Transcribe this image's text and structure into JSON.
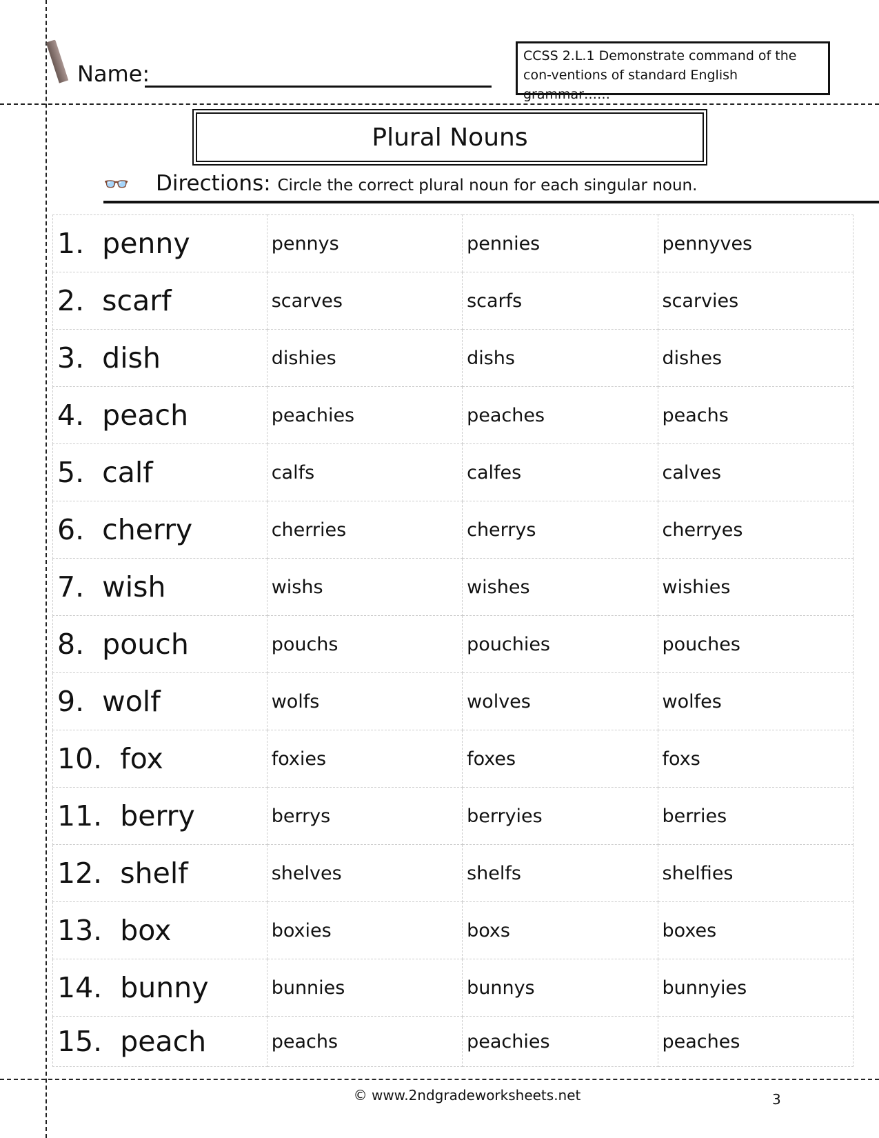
{
  "header": {
    "name_label": "Name:",
    "standard": "CCSS 2.L.1 Demonstrate command of the con-ventions of standard English grammar……"
  },
  "title": "Plural Nouns",
  "directions": {
    "label": "Directions:",
    "text": "Circle the correct plural noun for each singular noun."
  },
  "rows": [
    {
      "word": "1.  penny",
      "options": [
        "pennys",
        "pennies",
        "pennyves"
      ]
    },
    {
      "word": "2.  scarf",
      "options": [
        "scarves",
        "scarfs",
        "scarvies"
      ]
    },
    {
      "word": "3.  dish",
      "options": [
        "dishies",
        "dishs",
        "dishes"
      ]
    },
    {
      "word": "4.  peach",
      "options": [
        "peachies",
        "peaches",
        "peachs"
      ]
    },
    {
      "word": "5.  calf",
      "options": [
        "calfs",
        "calfes",
        "calves"
      ]
    },
    {
      "word": "6.  cherry",
      "options": [
        "cherries",
        "cherrys",
        "cherryes"
      ]
    },
    {
      "word": "7.  wish",
      "options": [
        "wishs",
        "wishes",
        "wishies"
      ]
    },
    {
      "word": "8.  pouch",
      "options": [
        "pouchs",
        "pouchies",
        "pouches"
      ]
    },
    {
      "word": "9.  wolf",
      "options": [
        "wolfs",
        "wolves",
        "wolfes"
      ]
    },
    {
      "word": "10.  fox",
      "options": [
        "foxies",
        "foxes",
        "foxs"
      ]
    },
    {
      "word": "11.  berry",
      "options": [
        "berrys",
        "berryies",
        "berries"
      ]
    },
    {
      "word": "12.  shelf",
      "options": [
        "shelves",
        "shelfs",
        "shelfies"
      ]
    },
    {
      "word": "13.  box",
      "options": [
        "boxies",
        "boxs",
        "boxes"
      ]
    },
    {
      "word": "14.  bunny",
      "options": [
        "bunnies",
        "bunnys",
        "bunnyies"
      ]
    },
    {
      "word": "15.  peach",
      "options": [
        "peachs",
        "peachies",
        "peaches"
      ]
    }
  ],
  "footer": {
    "copyright": "© www.2ndgradeworksheets.net",
    "page_number": "3"
  },
  "icons": {
    "pencil": "pencil-icon",
    "glasses": "glasses-icon"
  }
}
